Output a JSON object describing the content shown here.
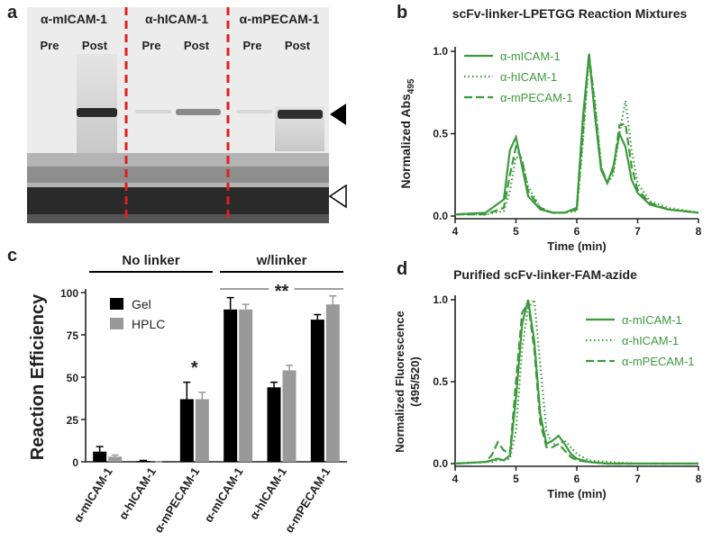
{
  "gel": {
    "panel": "a",
    "antibodies": [
      "α-mICAM-1",
      "α-hICAM-1",
      "α-mPECAM-1"
    ],
    "lanes": [
      "Pre",
      "Post"
    ]
  },
  "chart_data": [
    {
      "type": "line",
      "panel": "b",
      "title": "scFv-linker-LPETGG Reaction Mixtures",
      "x_label": "Time (min)",
      "y_label": "Normalized Abs",
      "y_label_sub": "495",
      "xlim": [
        4,
        8
      ],
      "xticks": [
        4,
        5,
        6,
        7,
        8
      ],
      "ylim": [
        0,
        1
      ],
      "yticks": [
        {
          "value": 0,
          "label": "0.0"
        },
        {
          "value": 0.5,
          "label": "0.5"
        },
        {
          "value": 1,
          "label": "1.0"
        }
      ],
      "x": [
        4,
        4.5,
        4.8,
        4.9,
        5.0,
        5.1,
        5.2,
        5.4,
        5.6,
        5.8,
        6.0,
        6.1,
        6.2,
        6.3,
        6.4,
        6.5,
        6.6,
        6.7,
        6.8,
        6.9,
        7.0,
        7.2,
        7.5,
        8.0
      ],
      "series": [
        {
          "name": "α-mICAM-1",
          "color": "#3c9a3c",
          "style": "solid",
          "values": [
            0.01,
            0.02,
            0.1,
            0.4,
            0.48,
            0.3,
            0.12,
            0.04,
            0.02,
            0.02,
            0.05,
            0.6,
            0.98,
            0.6,
            0.28,
            0.2,
            0.3,
            0.5,
            0.42,
            0.22,
            0.14,
            0.07,
            0.04,
            0.02
          ]
        },
        {
          "name": "α-hICAM-1",
          "color": "#3c9a3c",
          "style": "dotted",
          "values": [
            0.01,
            0.01,
            0.03,
            0.15,
            0.36,
            0.34,
            0.18,
            0.05,
            0.02,
            0.02,
            0.03,
            0.45,
            0.96,
            0.7,
            0.3,
            0.2,
            0.25,
            0.5,
            0.7,
            0.4,
            0.2,
            0.09,
            0.05,
            0.02
          ]
        },
        {
          "name": "α-mPECAM-1",
          "color": "#3c9a3c",
          "style": "dashed",
          "values": [
            0.01,
            0.01,
            0.05,
            0.25,
            0.42,
            0.34,
            0.15,
            0.05,
            0.02,
            0.02,
            0.04,
            0.5,
            0.99,
            0.65,
            0.3,
            0.2,
            0.28,
            0.55,
            0.56,
            0.3,
            0.16,
            0.08,
            0.04,
            0.02
          ]
        }
      ]
    },
    {
      "type": "bar",
      "panel": "c",
      "y_label": "Reaction Efficiency",
      "groups": [
        "No linker",
        "w/linker"
      ],
      "annotations": [
        "*",
        "**"
      ],
      "categories": [
        "α-mICAM-1",
        "α-hICAM-1",
        "α-mPECAM-1",
        "α-mICAM-1",
        "α-hICAM-1",
        "α-mPECAM-1"
      ],
      "ylim": [
        0,
        100
      ],
      "yticks": [
        0,
        25,
        50,
        75,
        100
      ],
      "series": [
        {
          "name": "Gel",
          "color": "#000000",
          "values": [
            6,
            0.5,
            37,
            90,
            44,
            84
          ],
          "errors": [
            3,
            0.3,
            10,
            7,
            3,
            3
          ]
        },
        {
          "name": "HPLC",
          "color": "#999999",
          "values": [
            3,
            0,
            37,
            90,
            54,
            93
          ],
          "errors": [
            1,
            0,
            4,
            3,
            3,
            5
          ]
        }
      ]
    },
    {
      "type": "line",
      "panel": "d",
      "title": "Purified scFv-linker-FAM-azide",
      "x_label": "Time (min)",
      "y_label": [
        "Normalized Fluorescence",
        "(495/520)"
      ],
      "xlim": [
        4,
        8
      ],
      "xticks": [
        4,
        5,
        6,
        7,
        8
      ],
      "ylim": [
        0,
        1
      ],
      "yticks": [
        {
          "value": 0,
          "label": "0.0"
        },
        {
          "value": 0.5,
          "label": "0.5"
        },
        {
          "value": 1,
          "label": "1.0"
        }
      ],
      "x": [
        4,
        4.5,
        4.6,
        4.7,
        4.8,
        4.9,
        5.0,
        5.1,
        5.2,
        5.3,
        5.4,
        5.5,
        5.6,
        5.7,
        5.8,
        5.9,
        6.0,
        6.2,
        6.5,
        7,
        8
      ],
      "series": [
        {
          "name": "α-mICAM-1",
          "color": "#3c9a3c",
          "style": "solid",
          "values": [
            0,
            0.01,
            0.02,
            0.03,
            0.02,
            0.05,
            0.4,
            0.85,
            1.0,
            0.75,
            0.3,
            0.12,
            0.14,
            0.17,
            0.12,
            0.06,
            0.03,
            0.01,
            0,
            0,
            0
          ]
        },
        {
          "name": "α-hICAM-1",
          "color": "#3c9a3c",
          "style": "dotted",
          "values": [
            0,
            0.01,
            0.01,
            0.02,
            0.02,
            0.03,
            0.2,
            0.7,
            0.95,
            1.0,
            0.6,
            0.2,
            0.12,
            0.12,
            0.14,
            0.1,
            0.06,
            0.02,
            0.01,
            0,
            0
          ]
        },
        {
          "name": "α-mPECAM-1",
          "color": "#3c9a3c",
          "style": "dashed",
          "values": [
            0,
            0.01,
            0.05,
            0.13,
            0.08,
            0.06,
            0.5,
            0.92,
            0.98,
            0.7,
            0.25,
            0.1,
            0.1,
            0.12,
            0.08,
            0.04,
            0.02,
            0.01,
            0,
            0,
            0
          ]
        }
      ]
    }
  ]
}
